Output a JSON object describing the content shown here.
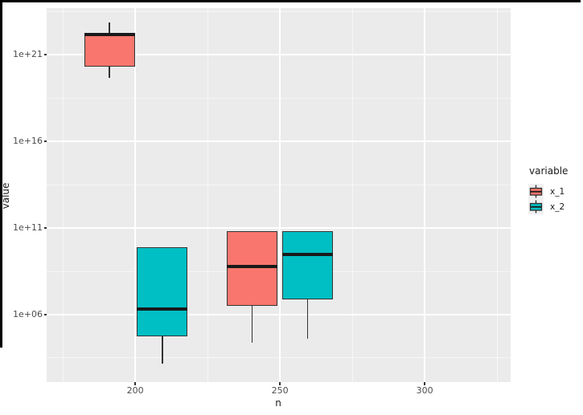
{
  "window": {
    "border_color": "#000000",
    "background": "#ffffff"
  },
  "chart_data": {
    "type": "boxplot",
    "title": "",
    "xlabel": "n",
    "ylabel": "value",
    "y_scale": "log10",
    "panel_background": "#EBEBEB",
    "gridline_color": "#FFFFFF",
    "box_border_color": "#333333",
    "median_color": "#1A1A1A",
    "axis_text_color": "#4D4D4D",
    "x_domain": [
      169.4,
      329.7
    ],
    "y_domain_log": [
      2.11,
      23.69
    ],
    "x_major_ticks": [
      {
        "value": 200,
        "label": "200"
      },
      {
        "value": 250,
        "label": "250"
      },
      {
        "value": 300,
        "label": "300"
      }
    ],
    "x_minor_ticks": [
      175,
      225,
      275,
      325
    ],
    "y_major_ticks": [
      {
        "log": 6,
        "label": "1e+06"
      },
      {
        "log": 11,
        "label": "1e+11"
      },
      {
        "log": 16,
        "label": "1e+16"
      },
      {
        "log": 21,
        "label": "1e+21"
      }
    ],
    "y_minor_ticks_log": [
      3.5,
      8.5,
      13.5,
      18.5,
      23.5
    ],
    "legend": {
      "title": "variable",
      "position": "right",
      "items": [
        {
          "label": "x_1",
          "color": "#F8766D"
        },
        {
          "label": "x_2",
          "color": "#00BFC4"
        }
      ]
    },
    "series_colors": {
      "x_1": "#F8766D",
      "x_2": "#00BFC4"
    },
    "box_width_n": 17.5,
    "boxes": [
      {
        "variable": "x_1",
        "n": 191.1,
        "whisker_low_log": 19.66,
        "q1_log": 20.31,
        "median_log": 22.16,
        "q3_log": 22.25,
        "whisker_high_log": 22.85,
        "approx_values": {
          "whisker_low": "4.6e19",
          "q1": "2.0e20",
          "median": "1.4e22",
          "q3": "1.8e22",
          "whisker_high": "7.1e22"
        }
      },
      {
        "variable": "x_2",
        "n": 209.4,
        "whisker_low_log": 3.18,
        "q1_log": 4.75,
        "median_log": 6.32,
        "q3_log": 9.89,
        "whisker_high_log": 9.89,
        "approx_values": {
          "whisker_low": "1.5e3",
          "q1": "5.6e4",
          "median": "2.1e6",
          "q3": "7.8e9",
          "whisker_high": "7.8e9"
        }
      },
      {
        "variable": "x_1",
        "n": 240.4,
        "whisker_low_log": 4.38,
        "q1_log": 6.51,
        "median_log": 8.78,
        "q3_log": 10.81,
        "whisker_high_log": 10.81,
        "approx_values": {
          "whisker_low": "2.4e4",
          "q1": "3.2e6",
          "median": "6.0e8",
          "q3": "6.5e10",
          "whisker_high": "6.5e10"
        }
      },
      {
        "variable": "x_2",
        "n": 259.5,
        "whisker_low_log": 4.61,
        "q1_log": 6.88,
        "median_log": 9.47,
        "q3_log": 10.81,
        "whisker_high_log": 10.81,
        "approx_values": {
          "whisker_low": "4.1e4",
          "q1": "7.6e6",
          "median": "3.0e9",
          "q3": "6.5e10",
          "whisker_high": "6.5e10"
        }
      }
    ]
  }
}
